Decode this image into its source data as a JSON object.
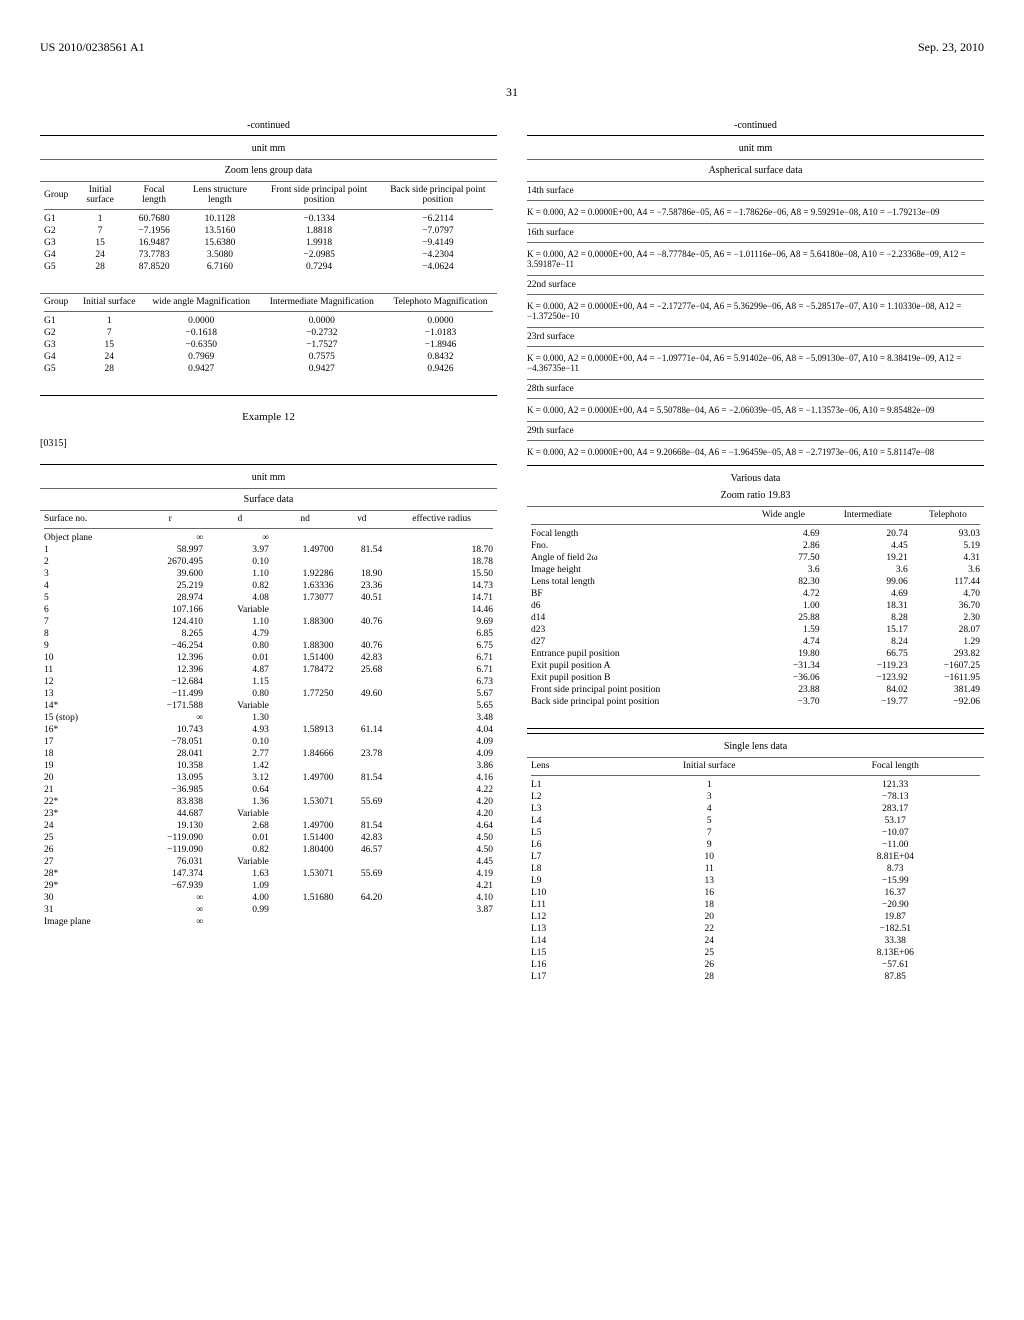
{
  "header": {
    "left": "US 2010/0238561 A1",
    "right": "Sep. 23, 2010"
  },
  "pageNum": "31",
  "t1": {
    "cont": "-continued",
    "unit": "unit mm",
    "title": "Zoom lens group data",
    "h": [
      "Group",
      "Initial surface",
      "Focal length",
      "Lens structure length",
      "Front side principal point position",
      "Back side principal point position"
    ],
    "rows": [
      [
        "G1",
        "1",
        "60.7680",
        "10.1128",
        "−0.1334",
        "−6.2114"
      ],
      [
        "G2",
        "7",
        "−7.1956",
        "13.5160",
        "1.8818",
        "−7.0797"
      ],
      [
        "G3",
        "15",
        "16.9487",
        "15.6380",
        "1.9918",
        "−9.4149"
      ],
      [
        "G4",
        "24",
        "73.7783",
        "3.5080",
        "−2.0985",
        "−4.2304"
      ],
      [
        "G5",
        "28",
        "87.8520",
        "6.7160",
        "0.7294",
        "−4.0624"
      ]
    ],
    "h2": [
      "Group",
      "Initial surface",
      "wide angle Magnification",
      "Intermediate Magnification",
      "Telephoto Magnification"
    ],
    "rows2": [
      [
        "G1",
        "1",
        "0.0000",
        "0.0000",
        "0.0000"
      ],
      [
        "G2",
        "7",
        "−0.1618",
        "−0.2732",
        "−1.0183"
      ],
      [
        "G3",
        "15",
        "−0.6350",
        "−1.7527",
        "−1.8946"
      ],
      [
        "G4",
        "24",
        "0.7969",
        "0.7575",
        "0.8432"
      ],
      [
        "G5",
        "28",
        "0.9427",
        "0.9427",
        "0.9426"
      ]
    ]
  },
  "ex": "Example 12",
  "para": "[0315]",
  "t2": {
    "unit": "unit mm",
    "title": "Surface data",
    "h": [
      "Surface no.",
      "r",
      "d",
      "nd",
      "νd",
      "effective radius"
    ],
    "rows": [
      [
        "Object plane",
        "∞",
        "∞",
        "",
        "",
        ""
      ],
      [
        "1",
        "58.997",
        "3.97",
        "1.49700",
        "81.54",
        "18.70"
      ],
      [
        "2",
        "2670.495",
        "0.10",
        "",
        "",
        "18.78"
      ],
      [
        "3",
        "39.600",
        "1.10",
        "1.92286",
        "18.90",
        "15.50"
      ],
      [
        "4",
        "25.219",
        "0.82",
        "1.63336",
        "23.36",
        "14.73"
      ],
      [
        "5",
        "28.974",
        "4.08",
        "1.73077",
        "40.51",
        "14.71"
      ],
      [
        "6",
        "107.166",
        "Variable",
        "",
        "",
        "14.46"
      ],
      [
        "7",
        "124.410",
        "1.10",
        "1.88300",
        "40.76",
        "9.69"
      ],
      [
        "8",
        "8.265",
        "4.79",
        "",
        "",
        "6.85"
      ],
      [
        "9",
        "−46.254",
        "0.80",
        "1.88300",
        "40.76",
        "6.75"
      ],
      [
        "10",
        "12.396",
        "0.01",
        "1.51400",
        "42.83",
        "6.71"
      ],
      [
        "11",
        "12.396",
        "4.87",
        "1.78472",
        "25.68",
        "6.71"
      ],
      [
        "12",
        "−12.684",
        "1.15",
        "",
        "",
        "6.73"
      ],
      [
        "13",
        "−11.499",
        "0.80",
        "1.77250",
        "49.60",
        "5.67"
      ],
      [
        "14*",
        "−171.588",
        "Variable",
        "",
        "",
        "5.65"
      ],
      [
        "15 (stop)",
        "∞",
        "1.30",
        "",
        "",
        "3.48"
      ],
      [
        "16*",
        "10.743",
        "4.93",
        "1.58913",
        "61.14",
        "4.04"
      ],
      [
        "17",
        "−78.051",
        "0.10",
        "",
        "",
        "4.09"
      ],
      [
        "18",
        "28.041",
        "2.77",
        "1.84666",
        "23.78",
        "4.09"
      ],
      [
        "19",
        "10.358",
        "1.42",
        "",
        "",
        "3.86"
      ],
      [
        "20",
        "13.095",
        "3.12",
        "1.49700",
        "81.54",
        "4.16"
      ],
      [
        "21",
        "−36.985",
        "0.64",
        "",
        "",
        "4.22"
      ],
      [
        "22*",
        "83.838",
        "1.36",
        "1.53071",
        "55.69",
        "4.20"
      ],
      [
        "23*",
        "44.687",
        "Variable",
        "",
        "",
        "4.20"
      ],
      [
        "24",
        "19.130",
        "2.68",
        "1.49700",
        "81.54",
        "4.64"
      ],
      [
        "25",
        "−119.090",
        "0.01",
        "1.51400",
        "42.83",
        "4.50"
      ],
      [
        "26",
        "−119.090",
        "0.82",
        "1.80400",
        "46.57",
        "4.50"
      ],
      [
        "27",
        "76.031",
        "Variable",
        "",
        "",
        "4.45"
      ],
      [
        "28*",
        "147.374",
        "1.63",
        "1.53071",
        "55.69",
        "4.19"
      ],
      [
        "29*",
        "−67.939",
        "1.09",
        "",
        "",
        "4.21"
      ],
      [
        "30",
        "∞",
        "4.00",
        "1.51680",
        "64.20",
        "4.10"
      ],
      [
        "31",
        "∞",
        "0.99",
        "",
        "",
        "3.87"
      ],
      [
        "Image plane",
        "∞",
        "",
        "",
        "",
        ""
      ]
    ]
  },
  "t3": {
    "cont": "-continued",
    "unit": "unit mm",
    "title": "Aspherical surface data",
    "items": [
      {
        "label": "14th surface",
        "k": "K = 0.000, A2 = 0.0000E+00, A4 = −7.58786e−05, A6 = −1.78626e−06, A8 = 9.59291e−08, A10 = −1.79213e−09"
      },
      {
        "label": "16th surface",
        "k": "K = 0.000, A2 = 0.0000E+00, A4 = −8.77784e−05, A6 = −1.01116e−06, A8 = 5.64180e−08, A10 = −2.23368e−09, A12 = 3.59187e−11"
      },
      {
        "label": "22nd surface",
        "k": "K = 0.000, A2 = 0.0000E+00, A4 = −2.17277e−04, A6 = 5.36299e−06, A8 = −5.28517e−07, A10 = 1.10330e−08, A12 = −1.37250e−10"
      },
      {
        "label": "23rd surface",
        "k": "K = 0.000, A2 = 0.0000E+00, A4 = −1.09771e−04, A6 = 5.91402e−06, A8 = −5.09130e−07, A10 = 8.38419e−09, A12 = −4.36735e−11"
      },
      {
        "label": "28th surface",
        "k": "K = 0.000, A2 = 0.0000E+00, A4 = 5.50788e−04, A6 = −2.06039e−05, A8 = −1.13573e−06, A10 = 9.85482e−09"
      },
      {
        "label": "29th surface",
        "k": "K = 0.000, A2 = 0.0000E+00, A4 = 9.20668e−04, A6 = −1.96459e−05, A8 = −2.71973e−06, A10 = 5.81147e−08"
      }
    ]
  },
  "t4": {
    "title1": "Various data",
    "title2": "Zoom ratio 19.83",
    "h": [
      "",
      "Wide angle",
      "Intermediate",
      "Telephoto"
    ],
    "rows": [
      [
        "Focal length",
        "4.69",
        "20.74",
        "93.03"
      ],
      [
        "Fno.",
        "2.86",
        "4.45",
        "5.19"
      ],
      [
        "Angle of field 2ω",
        "77.50",
        "19.21",
        "4.31"
      ],
      [
        "Image height",
        "3.6",
        "3.6",
        "3.6"
      ],
      [
        "Lens total length",
        "82.30",
        "99.06",
        "117.44"
      ],
      [
        "BF",
        "4.72",
        "4.69",
        "4.70"
      ],
      [
        "d6",
        "1.00",
        "18.31",
        "36.70"
      ],
      [
        "d14",
        "25.88",
        "8.28",
        "2.30"
      ],
      [
        "d23",
        "1.59",
        "15.17",
        "28.07"
      ],
      [
        "d27",
        "4.74",
        "8.24",
        "1.29"
      ],
      [
        "Entrance pupil position",
        "19.80",
        "66.75",
        "293.82"
      ],
      [
        "Exit pupil position A",
        "−31.34",
        "−119.23",
        "−1607.25"
      ],
      [
        "Exit pupil position B",
        "−36.06",
        "−123.92",
        "−1611.95"
      ],
      [
        "Front side principal point position",
        "23.88",
        "84.02",
        "381.49"
      ],
      [
        "Back side principal point position",
        "−3.70",
        "−19.77",
        "−92.06"
      ]
    ]
  },
  "t5": {
    "title": "Single lens data",
    "h": [
      "Lens",
      "Initial surface",
      "Focal length"
    ],
    "rows": [
      [
        "L1",
        "1",
        "121.33"
      ],
      [
        "L2",
        "3",
        "−78.13"
      ],
      [
        "L3",
        "4",
        "283.17"
      ],
      [
        "L4",
        "5",
        "53.17"
      ],
      [
        "L5",
        "7",
        "−10.07"
      ],
      [
        "L6",
        "9",
        "−11.00"
      ],
      [
        "L7",
        "10",
        "8.81E+04"
      ],
      [
        "L8",
        "11",
        "8.73"
      ],
      [
        "L9",
        "13",
        "−15.99"
      ],
      [
        "L10",
        "16",
        "16.37"
      ],
      [
        "L11",
        "18",
        "−20.90"
      ],
      [
        "L12",
        "20",
        "19.87"
      ],
      [
        "L13",
        "22",
        "−182.51"
      ],
      [
        "L14",
        "24",
        "33.38"
      ],
      [
        "L15",
        "25",
        "8.13E+06"
      ],
      [
        "L16",
        "26",
        "−57.61"
      ],
      [
        "L17",
        "28",
        "87.85"
      ]
    ]
  }
}
